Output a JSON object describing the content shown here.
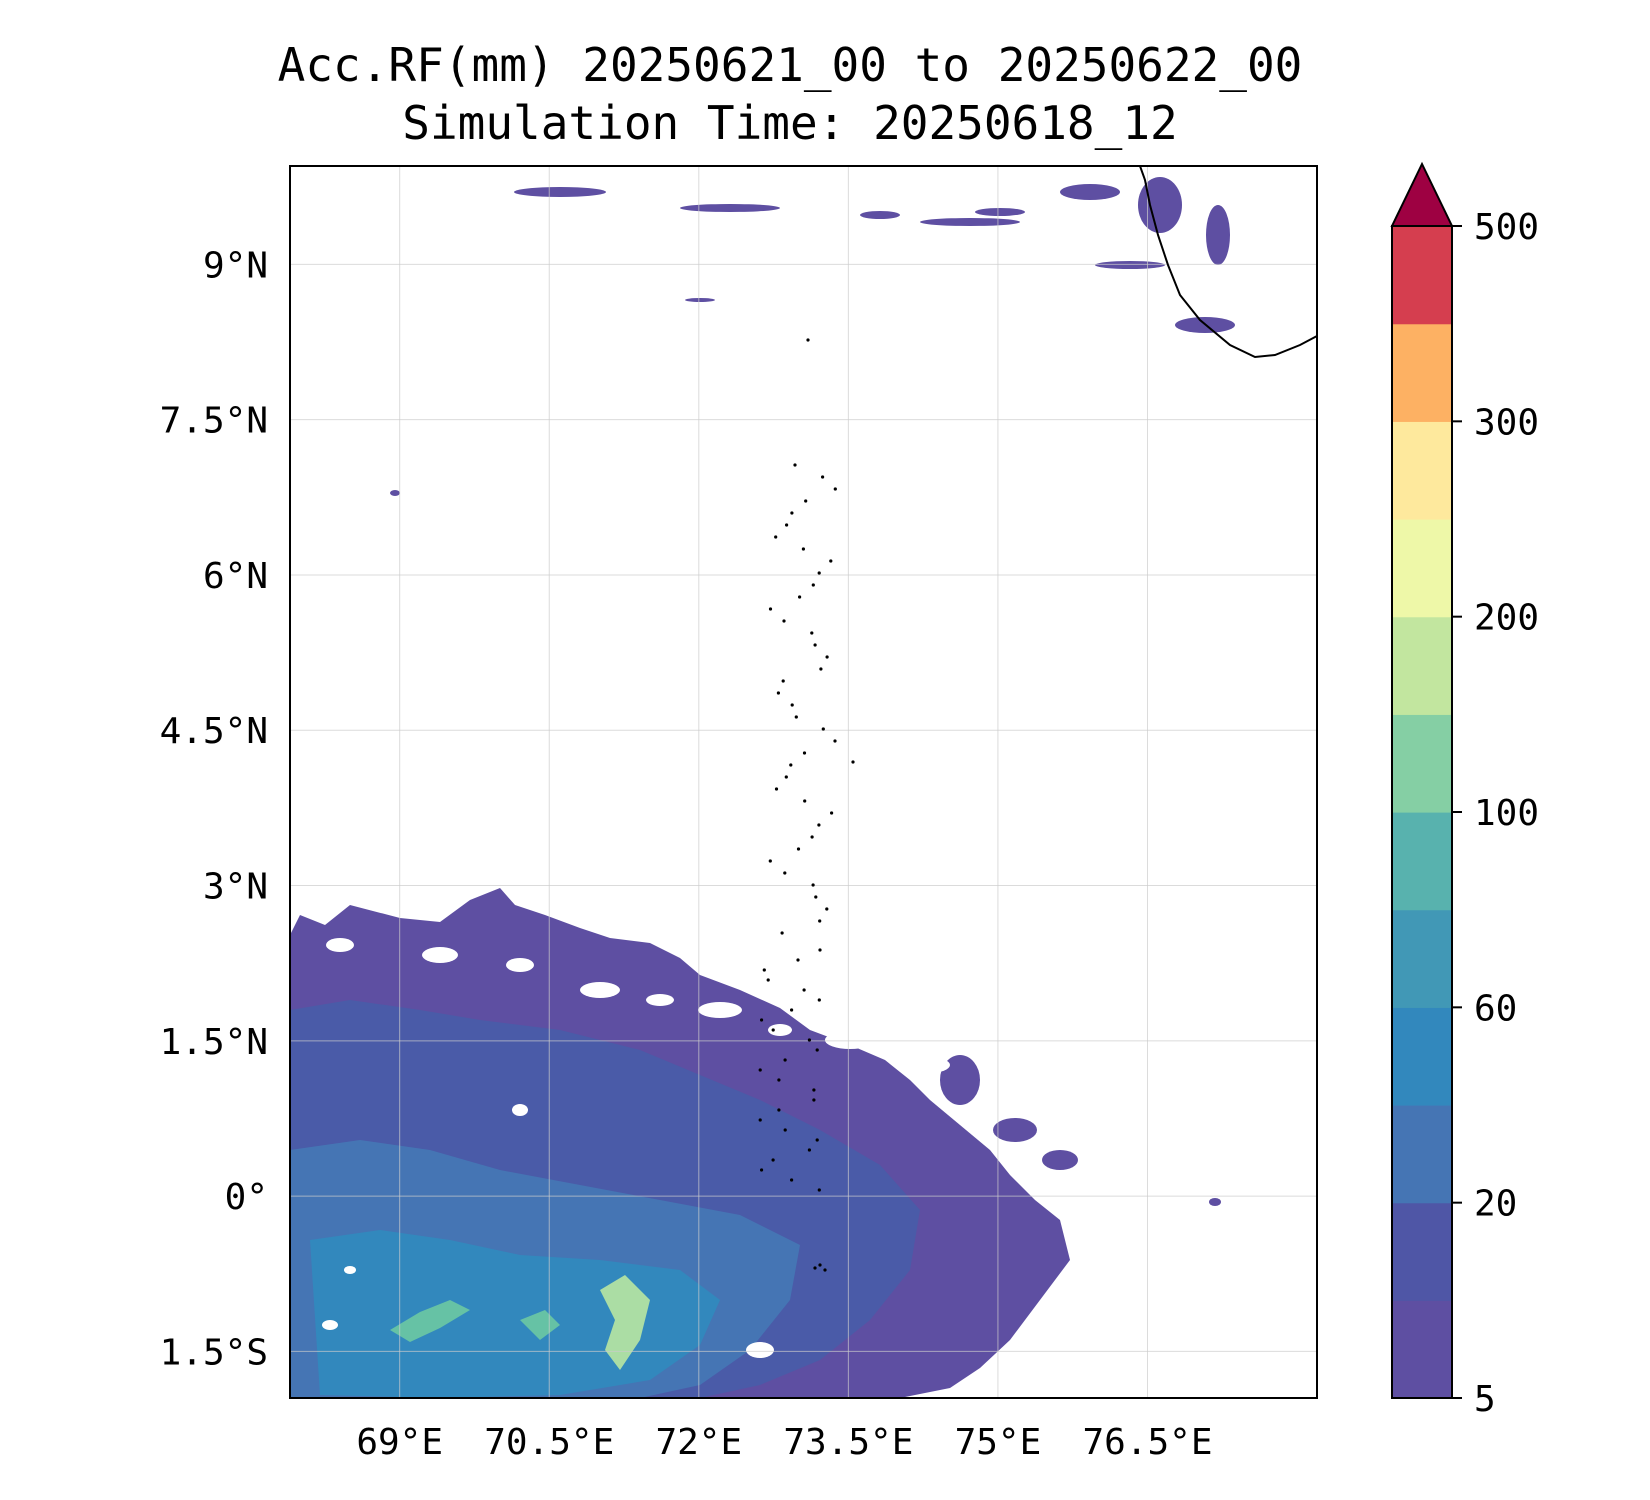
{
  "title_line1": "Acc.RF(mm) 20250621_00 to 20250622_00",
  "title_line2": "Simulation Time: 20250618_12",
  "map": {
    "lon_range": [
      67.9,
      78.2
    ],
    "lat_range": [
      -1.95,
      9.95
    ],
    "xticks": [
      {
        "lon": 69.0,
        "label": "69°E"
      },
      {
        "lon": 70.5,
        "label": "70.5°E"
      },
      {
        "lon": 72.0,
        "label": "72°E"
      },
      {
        "lon": 73.5,
        "label": "73.5°E"
      },
      {
        "lon": 75.0,
        "label": "75°E"
      },
      {
        "lon": 76.5,
        "label": "76.5°E"
      }
    ],
    "yticks": [
      {
        "lat": 9.0,
        "label": "9°N"
      },
      {
        "lat": 7.5,
        "label": "7.5°N"
      },
      {
        "lat": 6.0,
        "label": "6°N"
      },
      {
        "lat": 4.5,
        "label": "4.5°N"
      },
      {
        "lat": 3.0,
        "label": "3°N"
      },
      {
        "lat": 1.5,
        "label": "1.5°N"
      },
      {
        "lat": 0.0,
        "label": "0°"
      },
      {
        "lat": -1.5,
        "label": "1.5°S"
      }
    ],
    "gridlines": true,
    "field_colors": {
      "light": "#5e4fa2",
      "mid": "#4a5ba8",
      "heavy": "#4575b4",
      "heavier": "#3288bd",
      "peak": "#66c2a5",
      "max": "#abdda4"
    },
    "coastline_color": "#000000"
  },
  "colorbar": {
    "colors": [
      "#5e4fa2",
      "#4f56a6",
      "#4575b4",
      "#3288bd",
      "#4198b6",
      "#58b2ae",
      "#85cfa4",
      "#c2e69f",
      "#eef8a8",
      "#fee99d",
      "#fdb163",
      "#d53e4f"
    ],
    "extend_color": "#9e0142",
    "ticks": [
      {
        "index": 0,
        "label": "5"
      },
      {
        "index": 2,
        "label": "20"
      },
      {
        "index": 4,
        "label": "60"
      },
      {
        "index": 6,
        "label": "100"
      },
      {
        "index": 8,
        "label": "200"
      },
      {
        "index": 10,
        "label": "300"
      },
      {
        "index": 12,
        "label": "500"
      }
    ]
  }
}
